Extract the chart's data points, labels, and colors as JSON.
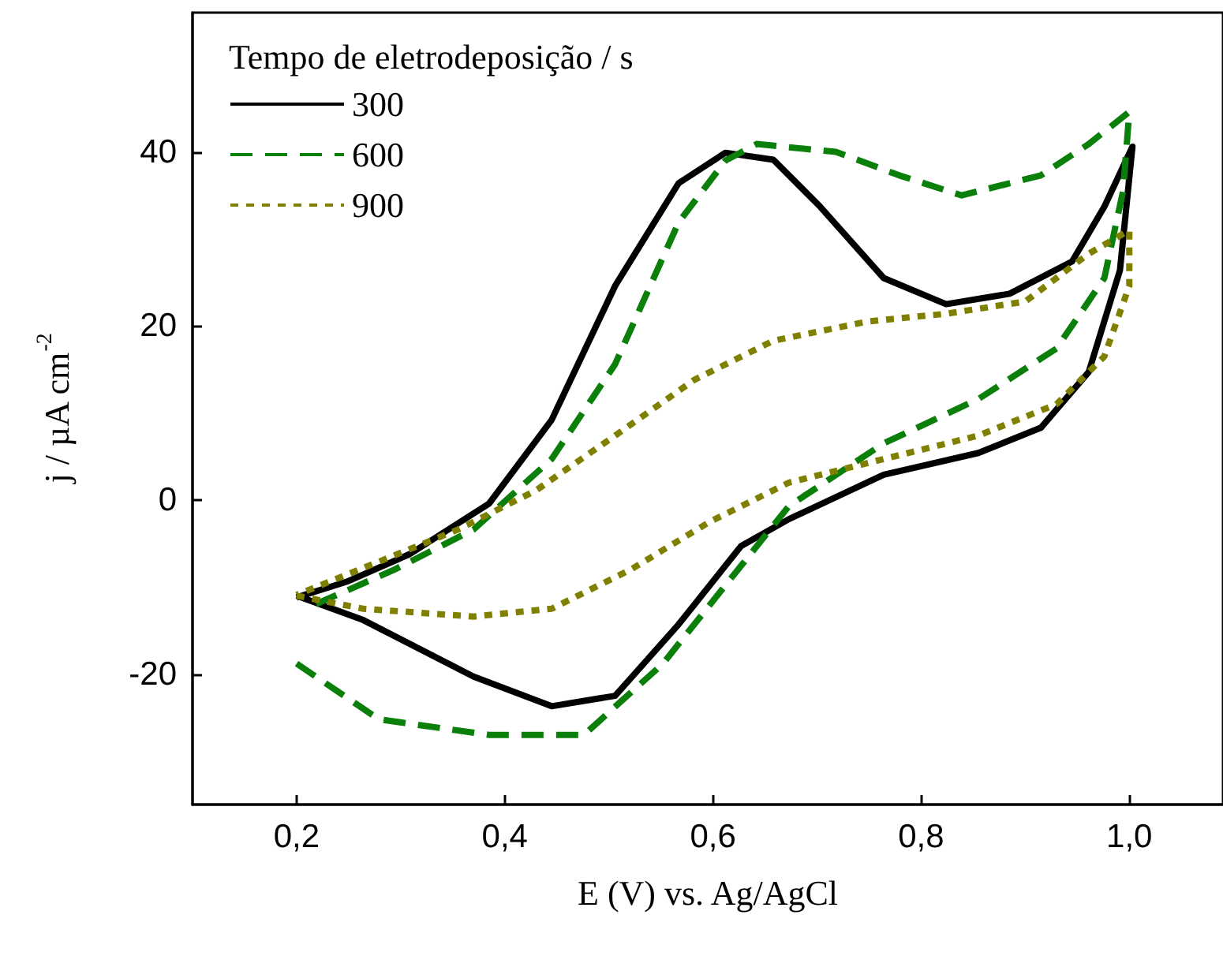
{
  "chart_data": {
    "type": "line",
    "xlabel": "E (V) vs. Ag/AgCl",
    "ylabel": "j / µA cm$^{-2}$",
    "legend_title": "Tempo de eletrodeposição / s",
    "legend": "top left",
    "grid": false,
    "marker": "none",
    "xlim": [
      0.1,
      1.09
    ],
    "xticks": [
      {
        "value": 0.2,
        "label": "0,2"
      },
      {
        "value": 0.4,
        "label": "0,4"
      },
      {
        "value": 0.6,
        "label": "0,6"
      },
      {
        "value": 0.8,
        "label": "0,8"
      },
      {
        "value": 1.0,
        "label": "1,0"
      }
    ],
    "ylim": [
      -35,
      56
    ],
    "yticks": [
      -20,
      0,
      20,
      40
    ],
    "series": [
      {
        "name": "300",
        "color": "#000000",
        "line_style": "solid",
        "x": [
          0.2,
          0.264,
          0.37,
          0.445,
          0.506,
          0.567,
          0.627,
          0.673,
          0.764,
          0.855,
          0.915,
          0.961,
          0.991,
          1.003,
          0.976,
          0.945,
          0.885,
          0.824,
          0.764,
          0.703,
          0.658,
          0.612,
          0.567,
          0.506,
          0.445,
          0.385,
          0.309,
          0.248,
          0.2
        ],
        "values": [
          -11,
          -13.8,
          -20.3,
          -23.7,
          -22.5,
          -14.3,
          -5.3,
          -2.2,
          2.9,
          5.4,
          8.3,
          14.7,
          26.4,
          40.6,
          33.7,
          27.4,
          23.7,
          22.5,
          25.5,
          33.7,
          39.1,
          39.9,
          36.4,
          24.6,
          9.2,
          -0.4,
          -6.2,
          -9.4,
          -11.2
        ]
      },
      {
        "name": "600",
        "color": "#0a7f0a",
        "line_style": "dashed",
        "x": [
          0.2,
          0.279,
          0.385,
          0.476,
          0.552,
          0.612,
          0.673,
          0.764,
          0.855,
          0.93,
          0.976,
          0.994,
          1.0,
          0.961,
          0.915,
          0.839,
          0.779,
          0.718,
          0.642,
          0.612,
          0.567,
          0.506,
          0.445,
          0.37,
          0.294,
          0.218
        ],
        "values": [
          -18.8,
          -25.2,
          -27,
          -27,
          -18.8,
          -9.8,
          -0.7,
          6.5,
          11.6,
          17.4,
          25.5,
          35.5,
          44.6,
          40.9,
          37.3,
          35,
          37.3,
          40,
          40.9,
          39,
          31.9,
          15.6,
          4.7,
          -3.4,
          -8,
          -12
        ]
      },
      {
        "name": "900",
        "color": "#808000",
        "line_style": "dotted",
        "x": [
          0.2,
          0.264,
          0.37,
          0.445,
          0.521,
          0.597,
          0.673,
          0.764,
          0.855,
          0.93,
          0.976,
          1.0,
          1.0,
          0.961,
          0.9,
          0.824,
          0.748,
          0.658,
          0.582,
          0.506,
          0.43,
          0.355,
          0.279,
          0.2
        ],
        "values": [
          -11,
          -12.5,
          -13.4,
          -12.5,
          -8,
          -2.5,
          2,
          4.7,
          7.4,
          11,
          16.5,
          24.6,
          31,
          28.3,
          22.8,
          21.4,
          20.5,
          18.3,
          13.8,
          7.4,
          1.1,
          -3.4,
          -7.1,
          -10.9
        ]
      }
    ]
  }
}
